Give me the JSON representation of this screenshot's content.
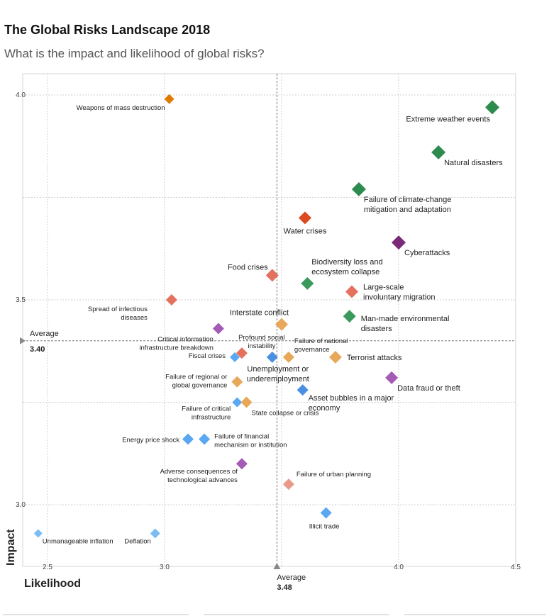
{
  "header": {
    "title": "The Global Risks Landscape 2018",
    "subtitle": "What is the impact and likelihood of global risks?"
  },
  "chart_data": {
    "type": "scatter",
    "title": "The Global Risks Landscape 2018",
    "subtitle": "What is the impact and likelihood of global risks?",
    "xlabel": "Likelihood",
    "ylabel": "Impact",
    "xlim": [
      2.4,
      4.5
    ],
    "ylim": [
      2.85,
      4.05
    ],
    "xticks": [
      {
        "v": 2.5,
        "label": "2.5"
      },
      {
        "v": 3.0,
        "label": "3.0"
      },
      {
        "v": 4.0,
        "label": "4.0"
      },
      {
        "v": 4.5,
        "label": "4.5"
      }
    ],
    "xgrid": [
      2.5,
      3.0,
      3.5,
      4.0,
      4.5
    ],
    "yticks": [
      {
        "v": 3.0,
        "label": "3.0"
      },
      {
        "v": 3.5,
        "label": "3.5"
      },
      {
        "v": 4.0,
        "label": "4.0"
      }
    ],
    "ygrid": [
      3.0,
      3.25,
      3.5,
      3.75,
      4.0
    ],
    "average_x": {
      "value": 3.48,
      "label": "Average",
      "value_label": "3.48"
    },
    "average_y": {
      "value": 3.4,
      "label": "Average",
      "value_label": "3.40"
    },
    "colors": {
      "economic": "#5aa8f2",
      "environmental": "#3a9a5b",
      "geopolitical": "#e8a85a",
      "societal": "#e4705e",
      "technological": "#a45bb5"
    },
    "points": [
      {
        "label": "Extreme weather events",
        "x": 4.4,
        "y": 3.97,
        "color": "#2e8b4e",
        "size": 10,
        "lines": [
          "Extreme weather events"
        ],
        "anchor": "end",
        "dx": -3,
        "dy": 20
      },
      {
        "label": "Weapons of mass destruction",
        "x": 3.02,
        "y": 3.99,
        "color": "#e07b00",
        "size": 7,
        "small": true,
        "lines": [
          "Weapons of mass destruction"
        ],
        "anchor": "end",
        "dx": -6,
        "dy": 15
      },
      {
        "label": "Natural disasters",
        "x": 4.17,
        "y": 3.86,
        "color": "#2e8b4e",
        "size": 10,
        "lines": [
          "Natural disasters"
        ],
        "anchor": "start",
        "dx": 8,
        "dy": 18
      },
      {
        "label": "Failure of climate-change mitigation and adaptation",
        "x": 3.83,
        "y": 3.77,
        "color": "#2e8b4e",
        "size": 10,
        "lines": [
          "Failure of climate-change",
          "mitigation and adaptation"
        ],
        "anchor": "start",
        "dx": 7,
        "dy": 18
      },
      {
        "label": "Water crises",
        "x": 3.6,
        "y": 3.7,
        "color": "#dd4a1f",
        "size": 9,
        "lines": [
          "Water crises"
        ],
        "anchor": "middle",
        "dx": 0,
        "dy": 22
      },
      {
        "label": "Cyberattacks",
        "x": 4.0,
        "y": 3.64,
        "color": "#7a2878",
        "size": 10,
        "lines": [
          "Cyberattacks"
        ],
        "anchor": "start",
        "dx": 8,
        "dy": 18
      },
      {
        "label": "Food crises",
        "x": 3.46,
        "y": 3.56,
        "color": "#e4705e",
        "size": 9,
        "lines": [
          "Food crises"
        ],
        "anchor": "end",
        "dx": -6,
        "dy": -8
      },
      {
        "label": "Biodiversity loss and ecosystem collapse",
        "x": 3.61,
        "y": 3.54,
        "color": "#3a9a5b",
        "size": 9,
        "lines": [
          "Biodiversity loss and",
          "ecosystem collapse"
        ],
        "anchor": "start",
        "dx": 6,
        "dy": -27
      },
      {
        "label": "Large-scale involuntary migration",
        "x": 3.8,
        "y": 3.52,
        "color": "#e4705e",
        "size": 9,
        "lines": [
          "Large-scale",
          "involuntary migration"
        ],
        "anchor": "start",
        "dx": 16,
        "dy": -3
      },
      {
        "label": "Spread of infectious diseases",
        "x": 3.03,
        "y": 3.5,
        "color": "#e4705e",
        "size": 8,
        "small": true,
        "lines": [
          "Spread of infectious",
          "diseases"
        ],
        "anchor": "end",
        "dx": -34,
        "dy": 16
      },
      {
        "label": "Man-made environmental disasters",
        "x": 3.79,
        "y": 3.46,
        "color": "#3a9a5b",
        "size": 9,
        "lines": [
          "Man-made environmental",
          "disasters"
        ],
        "anchor": "start",
        "dx": 16,
        "dy": 7
      },
      {
        "label": "Interstate conflict",
        "x": 3.5,
        "y": 3.44,
        "color": "#e8a85a",
        "size": 9,
        "lines": [
          "Interstate conflict"
        ],
        "anchor": "end",
        "dx": 10,
        "dy": -13
      },
      {
        "label": "Critical information infrastructure breakdown",
        "x": 3.23,
        "y": 3.43,
        "color": "#a45bb5",
        "size": 8,
        "small": true,
        "lines": [
          "Critical information",
          "infrastructure breakdown"
        ],
        "anchor": "end",
        "dx": -7,
        "dy": 18
      },
      {
        "label": "Profound social instability",
        "x": 3.33,
        "y": 3.37,
        "color": "#e4705e",
        "size": 8,
        "small": true,
        "lines": [
          "Profound social",
          "instability"
        ],
        "anchor": "middle",
        "dx": 28,
        "dy": -19
      },
      {
        "label": "Fiscal crises",
        "x": 3.3,
        "y": 3.36,
        "color": "#5aa8f2",
        "size": 7,
        "small": true,
        "lines": [
          "Fiscal crises"
        ],
        "anchor": "end",
        "dx": -13,
        "dy": 1
      },
      {
        "label": "Unemployment or underemployment",
        "x": 3.46,
        "y": 3.36,
        "color": "#4a90e2",
        "size": 8,
        "lines": [
          "Unemployment or",
          "underemployment"
        ],
        "anchor": "middle",
        "dx": 8,
        "dy": 20
      },
      {
        "label": "Failure of national governance",
        "x": 3.53,
        "y": 3.36,
        "color": "#e8a85a",
        "size": 8,
        "small": true,
        "lines": [
          "Failure of national",
          "governance"
        ],
        "anchor": "start",
        "dx": 8,
        "dy": -20
      },
      {
        "label": "Terrorist attacks",
        "x": 3.73,
        "y": 3.36,
        "color": "#e8a85a",
        "size": 9,
        "lines": [
          "Terrorist attacks"
        ],
        "anchor": "start",
        "dx": 16,
        "dy": 4
      },
      {
        "label": "Data fraud or theft",
        "x": 3.97,
        "y": 3.31,
        "color": "#a45bb5",
        "size": 9,
        "lines": [
          "Data fraud or theft"
        ],
        "anchor": "start",
        "dx": 8,
        "dy": 18
      },
      {
        "label": "Failure of regional or global governance",
        "x": 3.31,
        "y": 3.3,
        "color": "#e8a85a",
        "size": 8,
        "small": true,
        "lines": [
          "Failure of regional or",
          "global governance"
        ],
        "anchor": "end",
        "dx": -14,
        "dy": -4
      },
      {
        "label": "Asset bubbles in a major economy",
        "x": 3.59,
        "y": 3.28,
        "color": "#4a90e2",
        "size": 8,
        "lines": [
          "Asset bubbles in a major",
          "economy"
        ],
        "anchor": "start",
        "dx": 8,
        "dy": 15
      },
      {
        "label": "Failure of critical infrastructure",
        "x": 3.31,
        "y": 3.25,
        "color": "#5aa8f2",
        "size": 7,
        "small": true,
        "lines": [
          "Failure of critical",
          "infrastructure"
        ],
        "anchor": "end",
        "dx": -9,
        "dy": 12
      },
      {
        "label": "State collapse or crisis",
        "x": 3.35,
        "y": 3.25,
        "color": "#e8a85a",
        "size": 8,
        "small": true,
        "lines": [
          "State collapse or crisis"
        ],
        "anchor": "start",
        "dx": 7,
        "dy": 18
      },
      {
        "label": "Energy price shock",
        "x": 3.1,
        "y": 3.16,
        "color": "#5aa8f2",
        "size": 8,
        "small": true,
        "lines": [
          "Energy price shock"
        ],
        "anchor": "end",
        "dx": -12,
        "dy": 4
      },
      {
        "label": "Failure of financial mechanism or institution",
        "x": 3.17,
        "y": 3.16,
        "color": "#5aa8f2",
        "size": 8,
        "small": true,
        "lines": [
          "Failure of financial",
          "mechanism or institution"
        ],
        "anchor": "start",
        "dx": 14,
        "dy": -1
      },
      {
        "label": "Adverse consequences of technological advances",
        "x": 3.33,
        "y": 3.1,
        "color": "#a45bb5",
        "size": 8,
        "small": true,
        "lines": [
          "Adverse consequences of",
          "technological advances"
        ],
        "anchor": "end",
        "dx": -6,
        "dy": 14
      },
      {
        "label": "Failure of urban planning",
        "x": 3.53,
        "y": 3.05,
        "color": "#ea9a88",
        "size": 8,
        "small": true,
        "lines": [
          "Failure of urban planning"
        ],
        "anchor": "start",
        "dx": 11,
        "dy": -11
      },
      {
        "label": "Illicit trade",
        "x": 3.69,
        "y": 2.98,
        "color": "#5aa8f2",
        "size": 8,
        "small": true,
        "lines": [
          "Illicit trade"
        ],
        "anchor": "start",
        "dx": -24,
        "dy": 22
      },
      {
        "label": "Deflation",
        "x": 2.96,
        "y": 2.93,
        "color": "#7bbcf5",
        "size": 7,
        "small": true,
        "lines": [
          "Deflation"
        ],
        "anchor": "end",
        "dx": -6,
        "dy": 14
      },
      {
        "label": "Unmanageable inflation",
        "x": 2.46,
        "y": 2.93,
        "color": "#7bbcf5",
        "size": 6,
        "small": true,
        "lines": [
          "Unmanageable inflation"
        ],
        "anchor": "start",
        "dx": 6,
        "dy": 14
      }
    ]
  }
}
